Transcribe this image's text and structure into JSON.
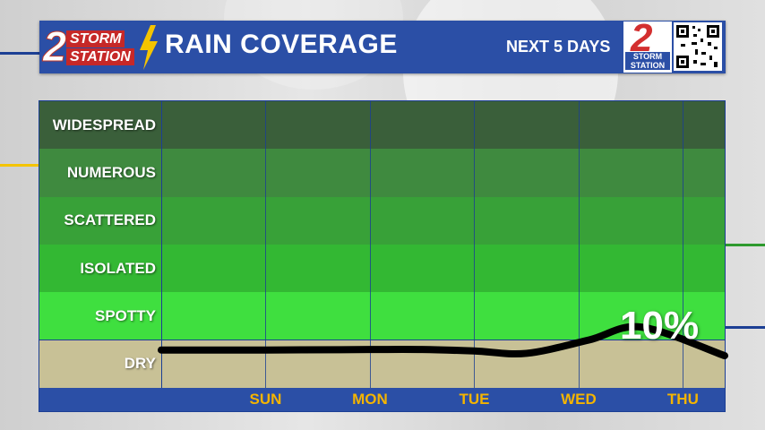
{
  "header": {
    "logo_number": "2",
    "logo_word1": "STORM",
    "logo_word2": "STATION",
    "title": "RAIN COVERAGE",
    "subtitle": "NEXT 5 DAYS",
    "right_logo_number": "2",
    "right_logo_text": "STORM STATION"
  },
  "colors": {
    "header_bg": "#2b4fa6",
    "axis_text": "#f4b400",
    "bands": [
      "#3a5f3a",
      "#3f8a3f",
      "#38a138",
      "#33b833",
      "#3fdf3f",
      "#c8c196"
    ]
  },
  "chart_data": {
    "type": "line",
    "title": "RAIN COVERAGE",
    "subtitle": "NEXT 5 DAYS",
    "y_categories": [
      "WIDESPREAD",
      "NUMEROUS",
      "SCATTERED",
      "ISOLATED",
      "SPOTTY",
      "DRY"
    ],
    "x_ticks": [
      "SUN",
      "MON",
      "TUE",
      "WED",
      "THU"
    ],
    "x_range": [
      0,
      5.4
    ],
    "y_range": [
      0,
      6
    ],
    "series": [
      {
        "x": [
          0,
          1,
          2,
          2.5,
          3,
          3.5,
          4.1,
          4.6,
          5.4
        ],
        "y": [
          0.79,
          0.79,
          0.8,
          0.8,
          0.77,
          0.72,
          1.0,
          1.27,
          0.67
        ]
      }
    ],
    "annotations": [
      {
        "text": "10%",
        "x": 4.6,
        "y": 1.27
      }
    ],
    "grid": true
  }
}
